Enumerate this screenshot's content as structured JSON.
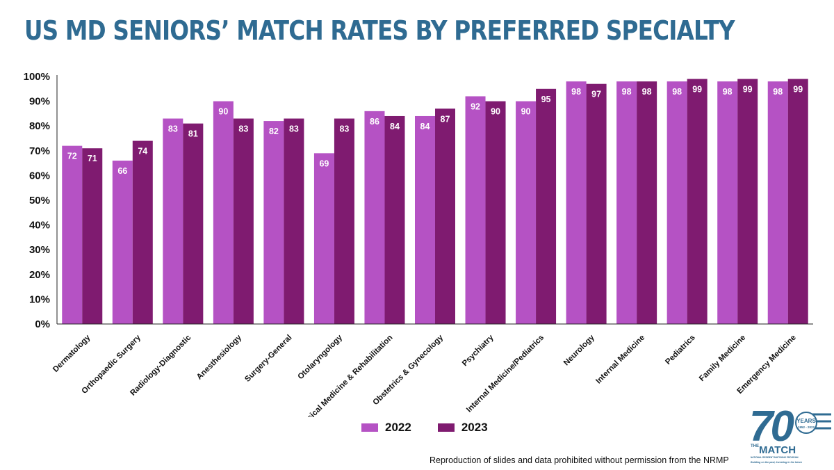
{
  "page": {
    "title": "US MD SENIORS’ MATCH RATES BY PREFERRED SPECIALTY",
    "footer": "Reproduction of slides and data prohibited without permission from the NRMP"
  },
  "logo": {
    "big_number": "70",
    "years": "YEARS",
    "span": "1952 - 2022",
    "the": "THE",
    "match": "MATCH",
    "org": "NATIONAL RESIDENT MATCHING PROGRAM",
    "tagline": "Building on the past, Investing in the future",
    "color": "#2f6b92"
  },
  "chart_data": {
    "type": "bar",
    "categories": [
      "Dermatology",
      "Orthopaedic Surgery",
      "Radiology-Diagnostic",
      "Anesthesiology",
      "Surgery-General",
      "Otolaryngology",
      "Physical Medicine & Rehabilitation",
      "Obstetrics & Gynecology",
      "Psychiatry",
      "Internal Medicine/Pediatrics",
      "Neurology",
      "Internal Medicine",
      "Pediatrics",
      "Family Medicine",
      "Emergency Medicine"
    ],
    "series": [
      {
        "name": "2022",
        "color": "#b552c4",
        "values": [
          72,
          66,
          83,
          90,
          82,
          69,
          86,
          84,
          92,
          90,
          98,
          98,
          98,
          98,
          98
        ]
      },
      {
        "name": "2023",
        "color": "#7f1b70",
        "values": [
          71,
          74,
          81,
          83,
          83,
          83,
          84,
          87,
          90,
          95,
          97,
          98,
          99,
          99,
          99
        ]
      }
    ],
    "yticks": [
      "0%",
      "10%",
      "20%",
      "30%",
      "40%",
      "50%",
      "60%",
      "70%",
      "80%",
      "90%",
      "100%"
    ],
    "ylim": [
      0,
      100
    ],
    "legend_position": "bottom",
    "grid": false
  }
}
